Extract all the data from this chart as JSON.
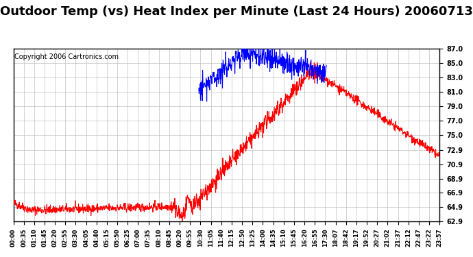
{
  "title": "Outdoor Temp (vs) Heat Index per Minute (Last 24 Hours) 20060713",
  "copyright": "Copyright 2006 Cartronics.com",
  "yticks": [
    62.9,
    64.9,
    66.9,
    68.9,
    70.9,
    72.9,
    75.0,
    77.0,
    79.0,
    81.0,
    83.0,
    85.0,
    87.0
  ],
  "ymin": 62.9,
  "ymax": 87.0,
  "red_color": "#ff0000",
  "blue_color": "#0000ff",
  "background_color": "#ffffff",
  "grid_color": "#c0c0c0",
  "title_fontsize": 13,
  "copyright_fontsize": 7,
  "xtick_labels": [
    "00:00",
    "00:35",
    "01:10",
    "01:45",
    "02:20",
    "02:55",
    "03:30",
    "04:05",
    "04:40",
    "05:15",
    "05:50",
    "06:25",
    "07:00",
    "07:35",
    "08:10",
    "08:45",
    "09:20",
    "09:55",
    "10:30",
    "11:05",
    "11:40",
    "12:15",
    "12:50",
    "13:25",
    "14:00",
    "14:35",
    "15:10",
    "15:45",
    "16:20",
    "16:55",
    "17:30",
    "18:07",
    "18:42",
    "19:17",
    "19:52",
    "20:27",
    "21:02",
    "21:37",
    "22:12",
    "22:47",
    "23:22",
    "23:57"
  ],
  "num_points": 1440
}
